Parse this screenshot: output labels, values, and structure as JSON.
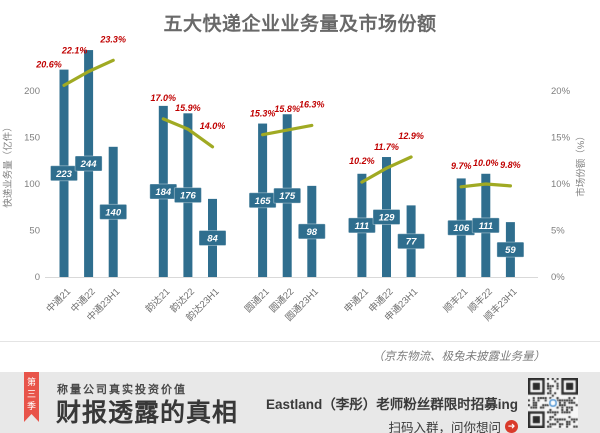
{
  "chart_data": {
    "type": "bar",
    "combo": "bar+line",
    "title": "五大快递企业业务量及市场份额",
    "categories": [
      "中通21",
      "中通22",
      "中通23H1",
      "韵达21",
      "韵达22",
      "韵达23H1",
      "圆通21",
      "圆通22",
      "圆通23H1",
      "申通21",
      "申通22",
      "申通23H1",
      "顺丰21",
      "顺丰22",
      "顺丰23H1"
    ],
    "series": [
      {
        "name": "快递业务量",
        "type": "bar",
        "unit": "亿件",
        "values": [
          223,
          244,
          140,
          184,
          176,
          84,
          165,
          175,
          98,
          111,
          129,
          77,
          106,
          111,
          59
        ]
      },
      {
        "name": "市场份额",
        "type": "line",
        "unit": "%",
        "values": [
          20.6,
          22.1,
          23.3,
          17.0,
          15.9,
          14.0,
          15.3,
          15.8,
          16.3,
          10.2,
          11.7,
          12.9,
          9.7,
          10.0,
          9.8
        ]
      }
    ],
    "share_labels": [
      "20.6%",
      "22.1%",
      "23.3%",
      "17.0%",
      "15.9%",
      "14.0%",
      "15.3%",
      "15.8%",
      "16.3%",
      "10.2%",
      "11.7%",
      "12.9%",
      "9.7%",
      "10.0%",
      "9.8%"
    ],
    "ylabel_left": "快递业务量（亿件）",
    "ylabel_right": "市场份额（%）",
    "yticks_left": [
      0,
      50,
      100,
      150,
      200
    ],
    "yticks_right": [
      "0%",
      "5%",
      "10%",
      "15%",
      "20%"
    ],
    "ylim_left": [
      0,
      250
    ],
    "ylim_right_pct": [
      0,
      25
    ],
    "grid": false,
    "legend": "none",
    "colors": {
      "bar": "#2f6e8e",
      "line": "#a0aa23",
      "point_labels": "#c00000",
      "title": "#696969"
    }
  },
  "footnote": "（京东物流、极兔未披露业务量）",
  "banner": {
    "ribbon": "第三季",
    "tagline": "称量公司真实投资价值",
    "headline": "财报透露的真相",
    "promo_line1": "Eastland（李彤）老师粉丝群限时招募ing",
    "promo_line2": "扫码入群，问你想问",
    "arrow_glyph": "➜"
  }
}
